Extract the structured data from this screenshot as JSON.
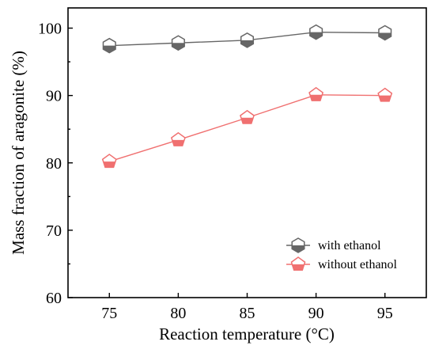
{
  "chart_data": {
    "type": "line",
    "xlabel": "Reaction temperature (°C)",
    "ylabel": "Mass fraction of aragonite (%)",
    "x": [
      75,
      80,
      85,
      90,
      95
    ],
    "xlim": [
      72,
      98
    ],
    "ylim": [
      60,
      103
    ],
    "xticks": [
      "75",
      "80",
      "85",
      "90",
      "95"
    ],
    "yticks": [
      "60",
      "70",
      "80",
      "90",
      "100"
    ],
    "grid": false,
    "legend_position": "bottom-right",
    "series": [
      {
        "name": "with ethanol",
        "values": [
          97.4,
          97.8,
          98.2,
          99.4,
          99.3
        ],
        "color": "#666666",
        "marker": "hexagon"
      },
      {
        "name": "without ethanol",
        "values": [
          80.2,
          83.4,
          86.7,
          90.1,
          90.0
        ],
        "color": "#f07070",
        "marker": "pentagon"
      }
    ]
  }
}
